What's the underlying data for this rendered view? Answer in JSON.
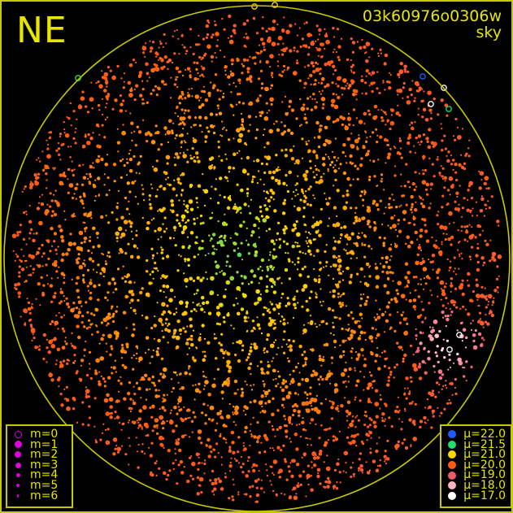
{
  "header": {
    "direction": "NE",
    "image_id": "03k60976o0306w",
    "map_type": "sky"
  },
  "chart_data": {
    "type": "scatter",
    "title": "03k60976o0306w",
    "subtitle": "sky",
    "projection": "all-sky circular fisheye",
    "orientation_label": "NE",
    "grid": false,
    "size_legend": {
      "placement": "bottom-left",
      "entries": [
        "m=0",
        "m=1",
        "m=2",
        "m=3",
        "m=4",
        "m=5",
        "m=6"
      ]
    },
    "color_legend": {
      "placement": "bottom-right",
      "entries": [
        {
          "label": "22.0",
          "color": "#1f5cff"
        },
        {
          "label": "21.5",
          "color": "#1ee070"
        },
        {
          "label": "21.0",
          "color": "#ffd800"
        },
        {
          "label": "20.0",
          "color": "#ff5a10"
        },
        {
          "label": "19.0",
          "color": "#f05a66"
        },
        {
          "label": "18.0",
          "color": "#ffb2c2"
        },
        {
          "label": "17.0",
          "color": "#ffffff"
        }
      ]
    },
    "mu_symbol": "μ",
    "colors": {
      "frame": "#c8c800",
      "horizon_circle": "#c8c800",
      "text": "#e6e600",
      "magnitude_marker": "#e000e0"
    }
  }
}
